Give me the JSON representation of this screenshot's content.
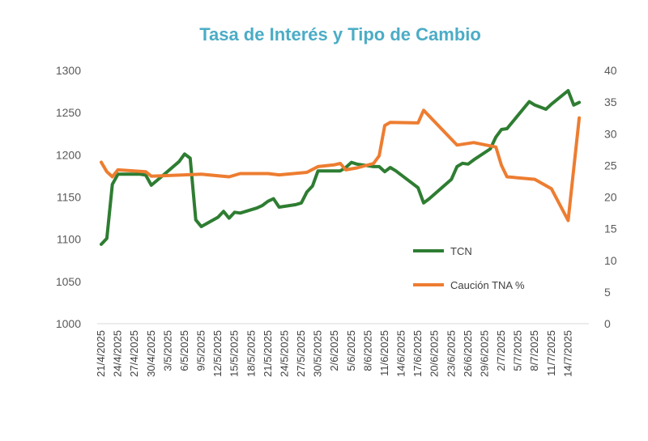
{
  "chart_data": {
    "type": "line",
    "title": "Tasa de Interés y Tipo de Cambio",
    "xlabel": "",
    "ylabel": "",
    "y_left": {
      "min": 1000,
      "max": 1300,
      "ticks": [
        "1000",
        "1050",
        "1100",
        "1150",
        "1200",
        "1250",
        "1300"
      ]
    },
    "y_right": {
      "min": 0,
      "max": 40,
      "ticks": [
        "0",
        "5",
        "10",
        "15",
        "20",
        "25",
        "30",
        "35",
        "40"
      ]
    },
    "x_range": [
      "2025-04-21",
      "2025-07-17"
    ],
    "x_ticks": [
      "21/4/2025",
      "24/4/2025",
      "27/4/2025",
      "30/4/2025",
      "3/5/2025",
      "6/5/2025",
      "9/5/2025",
      "12/5/2025",
      "15/5/2025",
      "18/5/2025",
      "21/5/2025",
      "24/5/2025",
      "27/5/2025",
      "30/5/2025",
      "2/6/2025",
      "5/6/2025",
      "8/6/2025",
      "11/6/2025",
      "14/6/2025",
      "17/6/2025",
      "20/6/2025",
      "23/6/2025",
      "26/6/2025",
      "29/6/2025",
      "2/7/2025",
      "5/7/2025",
      "8/7/2025",
      "11/7/2025",
      "14/7/2025"
    ],
    "legend_position": "right-inside",
    "grid": false,
    "series": [
      {
        "name": "TCN",
        "axis": "left",
        "color": "#2e7d32",
        "points": [
          [
            "2025-04-21",
            1094
          ],
          [
            "2025-04-22",
            1101
          ],
          [
            "2025-04-23",
            1165
          ],
          [
            "2025-04-24",
            1177
          ],
          [
            "2025-04-25",
            1177
          ],
          [
            "2025-04-28",
            1177
          ],
          [
            "2025-04-29",
            1176
          ],
          [
            "2025-04-30",
            1164
          ],
          [
            "2025-05-02",
            1175
          ],
          [
            "2025-05-05",
            1192
          ],
          [
            "2025-05-06",
            1201
          ],
          [
            "2025-05-07",
            1196
          ],
          [
            "2025-05-08",
            1123
          ],
          [
            "2025-05-09",
            1115
          ],
          [
            "2025-05-12",
            1126
          ],
          [
            "2025-05-13",
            1133
          ],
          [
            "2025-05-14",
            1125
          ],
          [
            "2025-05-15",
            1132
          ],
          [
            "2025-05-16",
            1131
          ],
          [
            "2025-05-19",
            1137
          ],
          [
            "2025-05-20",
            1140
          ],
          [
            "2025-05-21",
            1145
          ],
          [
            "2025-05-22",
            1148
          ],
          [
            "2025-05-23",
            1138
          ],
          [
            "2025-05-26",
            1141
          ],
          [
            "2025-05-27",
            1143
          ],
          [
            "2025-05-28",
            1156
          ],
          [
            "2025-05-29",
            1163
          ],
          [
            "2025-05-30",
            1181
          ],
          [
            "2025-06-02",
            1181
          ],
          [
            "2025-06-03",
            1181
          ],
          [
            "2025-06-04",
            1185
          ],
          [
            "2025-06-05",
            1191
          ],
          [
            "2025-06-06",
            1189
          ],
          [
            "2025-06-09",
            1186
          ],
          [
            "2025-06-10",
            1186
          ],
          [
            "2025-06-11",
            1180
          ],
          [
            "2025-06-12",
            1185
          ],
          [
            "2025-06-13",
            1181
          ],
          [
            "2025-06-16",
            1166
          ],
          [
            "2025-06-17",
            1161
          ],
          [
            "2025-06-18",
            1143
          ],
          [
            "2025-06-19",
            1148
          ],
          [
            "2025-06-23",
            1171
          ],
          [
            "2025-06-24",
            1186
          ],
          [
            "2025-06-25",
            1190
          ],
          [
            "2025-06-26",
            1189
          ],
          [
            "2025-06-27",
            1194
          ],
          [
            "2025-06-30",
            1207
          ],
          [
            "2025-07-01",
            1221
          ],
          [
            "2025-07-02",
            1230
          ],
          [
            "2025-07-03",
            1231
          ],
          [
            "2025-07-07",
            1263
          ],
          [
            "2025-07-08",
            1259
          ],
          [
            "2025-07-10",
            1254
          ],
          [
            "2025-07-11",
            1260
          ],
          [
            "2025-07-14",
            1276
          ],
          [
            "2025-07-15",
            1259
          ],
          [
            "2025-07-16",
            1262
          ]
        ]
      },
      {
        "name": "Caución TNA %",
        "axis": "right",
        "color": "#ed7d31",
        "points": [
          [
            "2025-04-21",
            25.5
          ],
          [
            "2025-04-22",
            24.0
          ],
          [
            "2025-04-23",
            23.2
          ],
          [
            "2025-04-24",
            24.3
          ],
          [
            "2025-04-29",
            24.0
          ],
          [
            "2025-04-30",
            23.3
          ],
          [
            "2025-05-06",
            23.5
          ],
          [
            "2025-05-09",
            23.6
          ],
          [
            "2025-05-14",
            23.2
          ],
          [
            "2025-05-16",
            23.7
          ],
          [
            "2025-05-21",
            23.7
          ],
          [
            "2025-05-23",
            23.5
          ],
          [
            "2025-05-28",
            23.9
          ],
          [
            "2025-05-30",
            24.8
          ],
          [
            "2025-06-02",
            25.1
          ],
          [
            "2025-06-03",
            25.3
          ],
          [
            "2025-06-04",
            24.3
          ],
          [
            "2025-06-06",
            24.6
          ],
          [
            "2025-06-09",
            25.3
          ],
          [
            "2025-06-10",
            26.5
          ],
          [
            "2025-06-11",
            31.3
          ],
          [
            "2025-06-12",
            31.8
          ],
          [
            "2025-06-17",
            31.7
          ],
          [
            "2025-06-18",
            33.7
          ],
          [
            "2025-06-24",
            28.2
          ],
          [
            "2025-06-27",
            28.6
          ],
          [
            "2025-07-01",
            27.9
          ],
          [
            "2025-07-02",
            25.0
          ],
          [
            "2025-07-03",
            23.2
          ],
          [
            "2025-07-08",
            22.8
          ],
          [
            "2025-07-11",
            21.3
          ],
          [
            "2025-07-14",
            16.3
          ],
          [
            "2025-07-16",
            32.5
          ]
        ]
      }
    ]
  }
}
